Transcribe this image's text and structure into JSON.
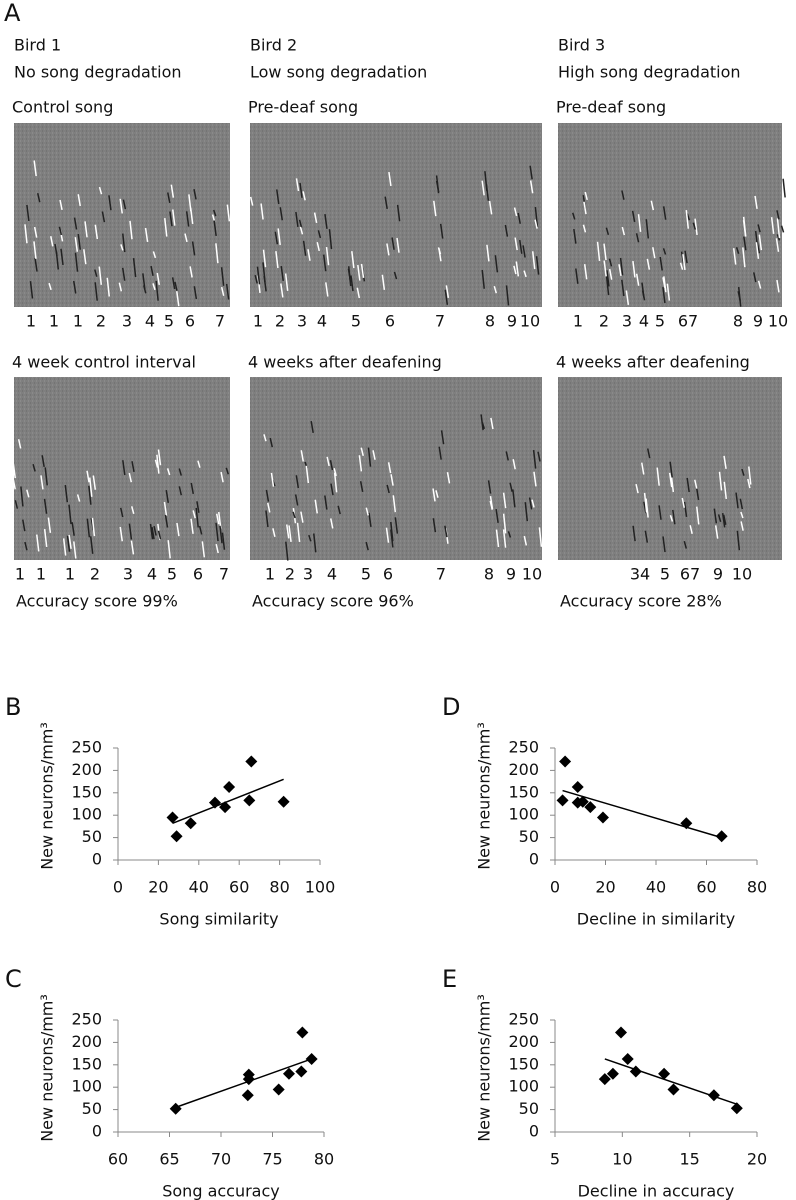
{
  "panel_A": {
    "label": "A",
    "birds": [
      {
        "name": "Bird 1",
        "condition": "No song degradation",
        "spectrograms": [
          {
            "title": "Control song",
            "syllables": [
              "1",
              "1",
              "1",
              "2",
              "3",
              "4",
              "5",
              "6",
              "7"
            ]
          },
          {
            "title": "4 week control interval",
            "syllables": [
              "1",
              "1",
              "1",
              "2",
              "3",
              "4",
              "5",
              "6",
              "7"
            ],
            "score": "Accuracy score 99%"
          }
        ]
      },
      {
        "name": "Bird 2",
        "condition": "Low song degradation",
        "spectrograms": [
          {
            "title": "Pre-deaf song",
            "syllables": [
              "1",
              "2",
              "3",
              "4",
              "5",
              "6",
              "7",
              "8",
              "9",
              "10"
            ]
          },
          {
            "title": "4 weeks after deafening",
            "syllables": [
              "1",
              "2",
              "3",
              "4",
              "5",
              "6",
              "7",
              "8",
              "9",
              "10"
            ],
            "score": "Accuracy score 96%"
          }
        ]
      },
      {
        "name": "Bird 3",
        "condition": "High song degradation",
        "spectrograms": [
          {
            "title": "Pre-deaf song",
            "syllables": [
              "1",
              "2",
              "3",
              "4",
              "5",
              "67",
              "8",
              "9",
              "10"
            ]
          },
          {
            "title": "4 weeks after deafening",
            "syllables": [
              "34",
              "5",
              "67",
              "9",
              "10"
            ],
            "score": "Accuracy score 28%"
          }
        ]
      }
    ]
  },
  "chart_data": [
    {
      "type": "scatter",
      "panel": "B",
      "xlabel": "Song similarity",
      "ylabel": "New neurons/mm³",
      "x": [
        27,
        29,
        36,
        48,
        53,
        55,
        65,
        66,
        82
      ],
      "y": [
        95,
        53,
        82,
        128,
        118,
        163,
        133,
        220,
        130
      ],
      "xlim": [
        0,
        100
      ],
      "xticks": [
        0,
        20,
        40,
        60,
        80,
        100
      ],
      "ylim": [
        0,
        250
      ],
      "yticks": [
        0,
        50,
        100,
        150,
        200,
        250
      ],
      "color": "#000000",
      "trendline": {
        "x": [
          27,
          82
        ],
        "y": [
          82,
          180
        ]
      }
    },
    {
      "type": "scatter",
      "panel": "D",
      "xlabel": "Decline in similarity",
      "ylabel": "New neurons/mm³",
      "x": [
        3,
        4,
        9,
        9,
        11,
        14,
        19,
        52,
        66
      ],
      "y": [
        133,
        220,
        163,
        128,
        130,
        118,
        95,
        82,
        53
      ],
      "xlim": [
        0,
        80
      ],
      "xticks": [
        0,
        20,
        40,
        60,
        80
      ],
      "ylim": [
        0,
        250
      ],
      "yticks": [
        0,
        50,
        100,
        150,
        200,
        250
      ],
      "color": "#000000",
      "trendline": {
        "x": [
          3,
          66
        ],
        "y": [
          155,
          50
        ]
      }
    },
    {
      "type": "scatter",
      "panel": "C",
      "xlabel": "Song accuracy",
      "ylabel": "New neurons/mm³",
      "x": [
        65.6,
        72.6,
        72.7,
        72.7,
        75.6,
        76.6,
        77.8,
        77.9,
        78.8
      ],
      "y": [
        52,
        82,
        118,
        128,
        95,
        130,
        135,
        222,
        163
      ],
      "xlim": [
        60,
        80
      ],
      "xticks": [
        60,
        65,
        70,
        75,
        80
      ],
      "ylim": [
        0,
        250
      ],
      "yticks": [
        0,
        50,
        100,
        150,
        200,
        250
      ],
      "color": "#000000",
      "trendline": {
        "x": [
          65.6,
          78.8
        ],
        "y": [
          55,
          163
        ]
      }
    },
    {
      "type": "scatter",
      "panel": "E",
      "xlabel": "Decline in accuracy",
      "ylabel": "New neurons/mm³",
      "x": [
        8.7,
        9.3,
        9.9,
        10.4,
        11,
        13.1,
        13.8,
        16.8,
        18.5
      ],
      "y": [
        118,
        130,
        222,
        163,
        135,
        130,
        95,
        82,
        53
      ],
      "xlim": [
        5,
        20
      ],
      "xticks": [
        5,
        10,
        15,
        20
      ],
      "ylim": [
        0,
        250
      ],
      "yticks": [
        0,
        50,
        100,
        150,
        200,
        250
      ],
      "color": "#000000",
      "trendline": {
        "x": [
          8.7,
          18.5
        ],
        "y": [
          163,
          62
        ]
      }
    }
  ]
}
